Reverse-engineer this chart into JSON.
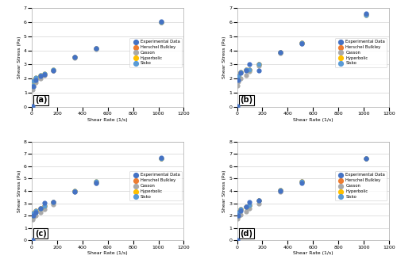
{
  "subplots": [
    {
      "label": "(a)",
      "ylim": [
        0,
        7
      ],
      "yticks": [
        0,
        1,
        2,
        3,
        4,
        5,
        6,
        7
      ],
      "xlim": [
        0,
        1200
      ],
      "xticks": [
        0,
        200,
        400,
        600,
        800,
        1000,
        1200
      ],
      "experimental_x": [
        5,
        10,
        30,
        70,
        100,
        170,
        340,
        510,
        1020
      ],
      "experimental_y": [
        0.05,
        1.45,
        1.9,
        2.2,
        2.3,
        2.6,
        3.5,
        4.15,
        6.05
      ],
      "herschel_x": [
        5,
        10,
        30,
        70,
        100,
        170,
        340,
        510,
        1020
      ],
      "herschel_y": [
        1.45,
        1.85,
        2.0,
        2.2,
        2.3,
        2.6,
        3.5,
        4.15,
        6.0
      ],
      "casson_x": [
        5,
        10,
        30,
        70,
        100,
        170,
        340,
        510,
        1020
      ],
      "casson_y": [
        1.2,
        1.45,
        1.75,
        2.0,
        2.25,
        2.55,
        3.45,
        4.1,
        6.0
      ],
      "hyperbolic_x": [
        5,
        10,
        30,
        70,
        100,
        170,
        340,
        510,
        1020
      ],
      "hyperbolic_y": [
        1.5,
        1.85,
        2.05,
        2.25,
        2.35,
        2.62,
        3.5,
        4.15,
        6.0
      ],
      "sisko_x": [
        5,
        10,
        30,
        70,
        100,
        170,
        340,
        510,
        1020
      ],
      "sisko_y": [
        1.5,
        1.85,
        2.05,
        2.25,
        2.35,
        2.62,
        3.5,
        4.15,
        6.0
      ]
    },
    {
      "label": "(b)",
      "ylim": [
        0,
        7
      ],
      "yticks": [
        0,
        1,
        2,
        3,
        4,
        5,
        6,
        7
      ],
      "xlim": [
        0,
        1200
      ],
      "xticks": [
        0,
        200,
        400,
        600,
        800,
        1000,
        1200
      ],
      "experimental_x": [
        5,
        10,
        30,
        70,
        100,
        170,
        340,
        510,
        1020
      ],
      "experimental_y": [
        0.05,
        1.9,
        2.4,
        2.6,
        3.05,
        2.6,
        3.85,
        4.5,
        6.6
      ],
      "herschel_x": [
        5,
        10,
        30,
        70,
        100,
        170,
        340,
        510,
        1020
      ],
      "herschel_y": [
        1.95,
        2.2,
        2.45,
        2.62,
        2.65,
        3.0,
        3.85,
        4.55,
        6.55
      ],
      "casson_x": [
        5,
        10,
        30,
        70,
        100,
        170,
        340,
        510,
        1020
      ],
      "casson_y": [
        1.5,
        1.8,
        2.0,
        2.25,
        2.5,
        2.9,
        3.8,
        4.5,
        6.55
      ],
      "hyperbolic_x": [
        5,
        10,
        30,
        70,
        100,
        170,
        340,
        510,
        1020
      ],
      "hyperbolic_y": [
        1.95,
        2.2,
        2.45,
        2.62,
        2.65,
        3.0,
        3.85,
        4.55,
        6.5
      ],
      "sisko_x": [
        5,
        10,
        30,
        70,
        100,
        170,
        340,
        510,
        1020
      ],
      "sisko_y": [
        1.95,
        2.2,
        2.45,
        2.62,
        2.65,
        3.0,
        3.85,
        4.55,
        6.5
      ]
    },
    {
      "label": "(c)",
      "ylim": [
        0,
        8
      ],
      "yticks": [
        0,
        1,
        2,
        3,
        4,
        5,
        6,
        7,
        8
      ],
      "xlim": [
        0,
        1200
      ],
      "xticks": [
        0,
        200,
        400,
        600,
        800,
        1000,
        1200
      ],
      "experimental_x": [
        5,
        10,
        30,
        70,
        100,
        170,
        340,
        510,
        1020
      ],
      "experimental_y": [
        0.05,
        2.0,
        2.25,
        2.6,
        3.05,
        3.1,
        3.9,
        4.65,
        6.7
      ],
      "herschel_x": [
        5,
        10,
        30,
        70,
        100,
        170,
        340,
        510,
        1020
      ],
      "herschel_y": [
        2.0,
        2.2,
        2.4,
        2.6,
        2.75,
        3.1,
        4.0,
        4.7,
        6.65
      ],
      "casson_x": [
        5,
        10,
        30,
        70,
        100,
        170,
        340,
        510,
        1020
      ],
      "casson_y": [
        1.7,
        1.9,
        2.0,
        2.25,
        2.5,
        2.9,
        3.9,
        4.65,
        6.6
      ],
      "hyperbolic_x": [
        5,
        10,
        30,
        70,
        100,
        170,
        340,
        510,
        1020
      ],
      "hyperbolic_y": [
        2.0,
        2.2,
        2.4,
        2.6,
        2.75,
        3.1,
        4.0,
        4.75,
        6.65
      ],
      "sisko_x": [
        5,
        10,
        30,
        70,
        100,
        170,
        340,
        510,
        1020
      ],
      "sisko_y": [
        2.0,
        2.2,
        2.4,
        2.6,
        2.75,
        3.1,
        4.0,
        4.75,
        6.65
      ]
    },
    {
      "label": "(d)",
      "ylim": [
        0,
        8
      ],
      "yticks": [
        0,
        1,
        2,
        3,
        4,
        5,
        6,
        7,
        8
      ],
      "xlim": [
        0,
        1200
      ],
      "xticks": [
        0,
        200,
        400,
        600,
        800,
        1000,
        1200
      ],
      "experimental_x": [
        5,
        10,
        30,
        70,
        100,
        170,
        340,
        510,
        1020
      ],
      "experimental_y": [
        0.05,
        2.0,
        2.4,
        2.7,
        3.1,
        3.2,
        4.0,
        4.65,
        6.65
      ],
      "herschel_x": [
        5,
        10,
        30,
        70,
        100,
        170,
        340,
        510,
        1020
      ],
      "herschel_y": [
        2.0,
        2.25,
        2.5,
        2.7,
        2.85,
        3.2,
        4.05,
        4.75,
        6.6
      ],
      "casson_x": [
        5,
        10,
        30,
        70,
        100,
        170,
        340,
        510,
        1020
      ],
      "casson_y": [
        1.75,
        1.95,
        2.1,
        2.35,
        2.6,
        3.0,
        3.95,
        4.7,
        6.6
      ],
      "hyperbolic_x": [
        5,
        10,
        30,
        70,
        100,
        170,
        340,
        510,
        1020
      ],
      "hyperbolic_y": [
        2.0,
        2.25,
        2.5,
        2.7,
        2.85,
        3.2,
        4.05,
        4.75,
        6.6
      ],
      "sisko_x": [
        5,
        10,
        30,
        70,
        100,
        170,
        340,
        510,
        1020
      ],
      "sisko_y": [
        2.0,
        2.25,
        2.5,
        2.7,
        2.85,
        3.2,
        4.05,
        4.75,
        6.6
      ]
    }
  ],
  "color_experimental": "#4472C4",
  "color_herschel": "#ED7D31",
  "color_casson": "#A9A9A9",
  "color_hyperbolic": "#FFC000",
  "color_sisko": "#5B9BD5",
  "xlabel": "Shear Rate (1/s)",
  "ylabel": "Shear Stress (Pa)",
  "marker_size": 12,
  "bg_color": "#FFFFFF",
  "grid_color": "#D3D3D3",
  "legend_labels": [
    "Experimental Data",
    "Herschel Bulkley",
    "Casson",
    "Hyperbolic",
    "Sisko"
  ]
}
